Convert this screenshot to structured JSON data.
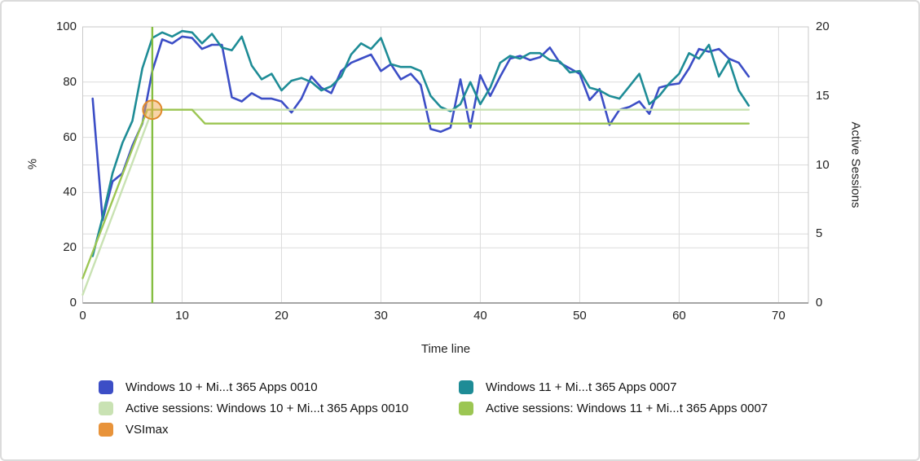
{
  "chart_data": {
    "type": "line",
    "title": "",
    "x_axis": {
      "label": "Time line",
      "ticks": [
        0,
        10,
        20,
        30,
        40,
        50,
        60,
        70
      ],
      "min": 0,
      "plot_max": 73
    },
    "y_axis_left": {
      "label": "%",
      "ticks": [
        0,
        20,
        40,
        60,
        80,
        100
      ],
      "min": 0,
      "max": 100
    },
    "y_axis_right": {
      "label": "Active Sessions",
      "ticks": [
        0,
        5,
        10,
        15,
        20
      ],
      "min": 0,
      "max": 20
    },
    "grid": true,
    "legend_position": "bottom",
    "series": [
      {
        "name": "Windows 10 + Mi...t 365 Apps 0010",
        "axis": "left",
        "color": "#3c4ec6",
        "width": 2.6,
        "x_start": 1,
        "values": [
          74,
          30,
          44,
          47,
          57,
          65,
          84,
          95.5,
          94,
          96.5,
          96,
          92,
          93.5,
          93.5,
          74.5,
          73,
          76,
          74,
          74,
          73,
          69,
          74,
          82,
          78,
          76,
          84,
          87,
          88.5,
          90,
          84,
          86.5,
          81,
          83,
          79,
          63,
          62,
          63.5,
          81,
          63.5,
          82.5,
          75,
          82,
          88.5,
          89.5,
          88,
          89,
          92.5,
          87,
          85,
          83,
          73.5,
          77.5,
          64.5,
          70,
          71,
          73,
          68.5,
          78,
          79,
          79.5,
          85,
          92,
          91,
          92,
          88.5,
          87,
          82
        ]
      },
      {
        "name": "Windows 11 + Mi...t 365 Apps 0007",
        "axis": "left",
        "color": "#1e8c96",
        "width": 2.6,
        "x_start": 1,
        "values": [
          17,
          31,
          47,
          58,
          66,
          85,
          96,
          98,
          96.5,
          98.5,
          98,
          94,
          97.5,
          92.5,
          91.5,
          96.5,
          86,
          81,
          83,
          77,
          80.5,
          81.5,
          80,
          77,
          78.5,
          82,
          90,
          94,
          92,
          96,
          86.5,
          85.5,
          85.5,
          84,
          75,
          71,
          69.5,
          72,
          80,
          72,
          78,
          87,
          89.5,
          88.5,
          90.5,
          90.5,
          88,
          87.5,
          83.5,
          84,
          78,
          77,
          75,
          74,
          78.5,
          83,
          72,
          75,
          79.5,
          83,
          90.5,
          88.5,
          93.5,
          82,
          88,
          77,
          71.5
        ]
      },
      {
        "name": "Active sessions: Windows 10 + Mi...t 365 Apps 0010",
        "axis": "right",
        "color": "#c9e2b3",
        "width": 2.4,
        "points": [
          [
            0,
            0.6
          ],
          [
            7,
            14
          ],
          [
            67,
            14
          ]
        ]
      },
      {
        "name": "Active sessions: Windows 11 + Mi...t 365 Apps 0007",
        "axis": "right",
        "color": "#9cc653",
        "width": 2.4,
        "points": [
          [
            0,
            1.8
          ],
          [
            6.5,
            14
          ],
          [
            11,
            14
          ],
          [
            12.3,
            13
          ],
          [
            67,
            13
          ]
        ]
      }
    ],
    "vsimax": {
      "label": "VSImax",
      "x": 7,
      "y_pct": 70,
      "line_color": "#85be41",
      "marker_fill": "rgba(242,169,79,0.5)",
      "marker_stroke": "#e0892b"
    }
  },
  "axes_titles": {
    "left": "%",
    "right": "Active Sessions",
    "x": "Time line"
  },
  "legend": {
    "items": [
      {
        "label": "Windows 10 + Mi...t 365 Apps 0010",
        "color": "#3c4ec6",
        "col": 0,
        "row": 0
      },
      {
        "label": "Windows 11 + Mi...t 365 Apps 0007",
        "color": "#1e8c96",
        "col": 1,
        "row": 0
      },
      {
        "label": "Active sessions: Windows 10 + Mi...t 365 Apps 0010",
        "color": "#c9e2b3",
        "col": 0,
        "row": 1
      },
      {
        "label": "Active sessions: Windows 11 + Mi...t 365 Apps 0007",
        "color": "#9cc653",
        "col": 1,
        "row": 1
      },
      {
        "label": "VSImax",
        "color": "#e8933a",
        "col": 0,
        "row": 2
      }
    ]
  },
  "style": {
    "grid_color": "#dcdcdc",
    "plot_border_color": "#c9c9c9",
    "axis_line_color": "#a6a6a6"
  }
}
